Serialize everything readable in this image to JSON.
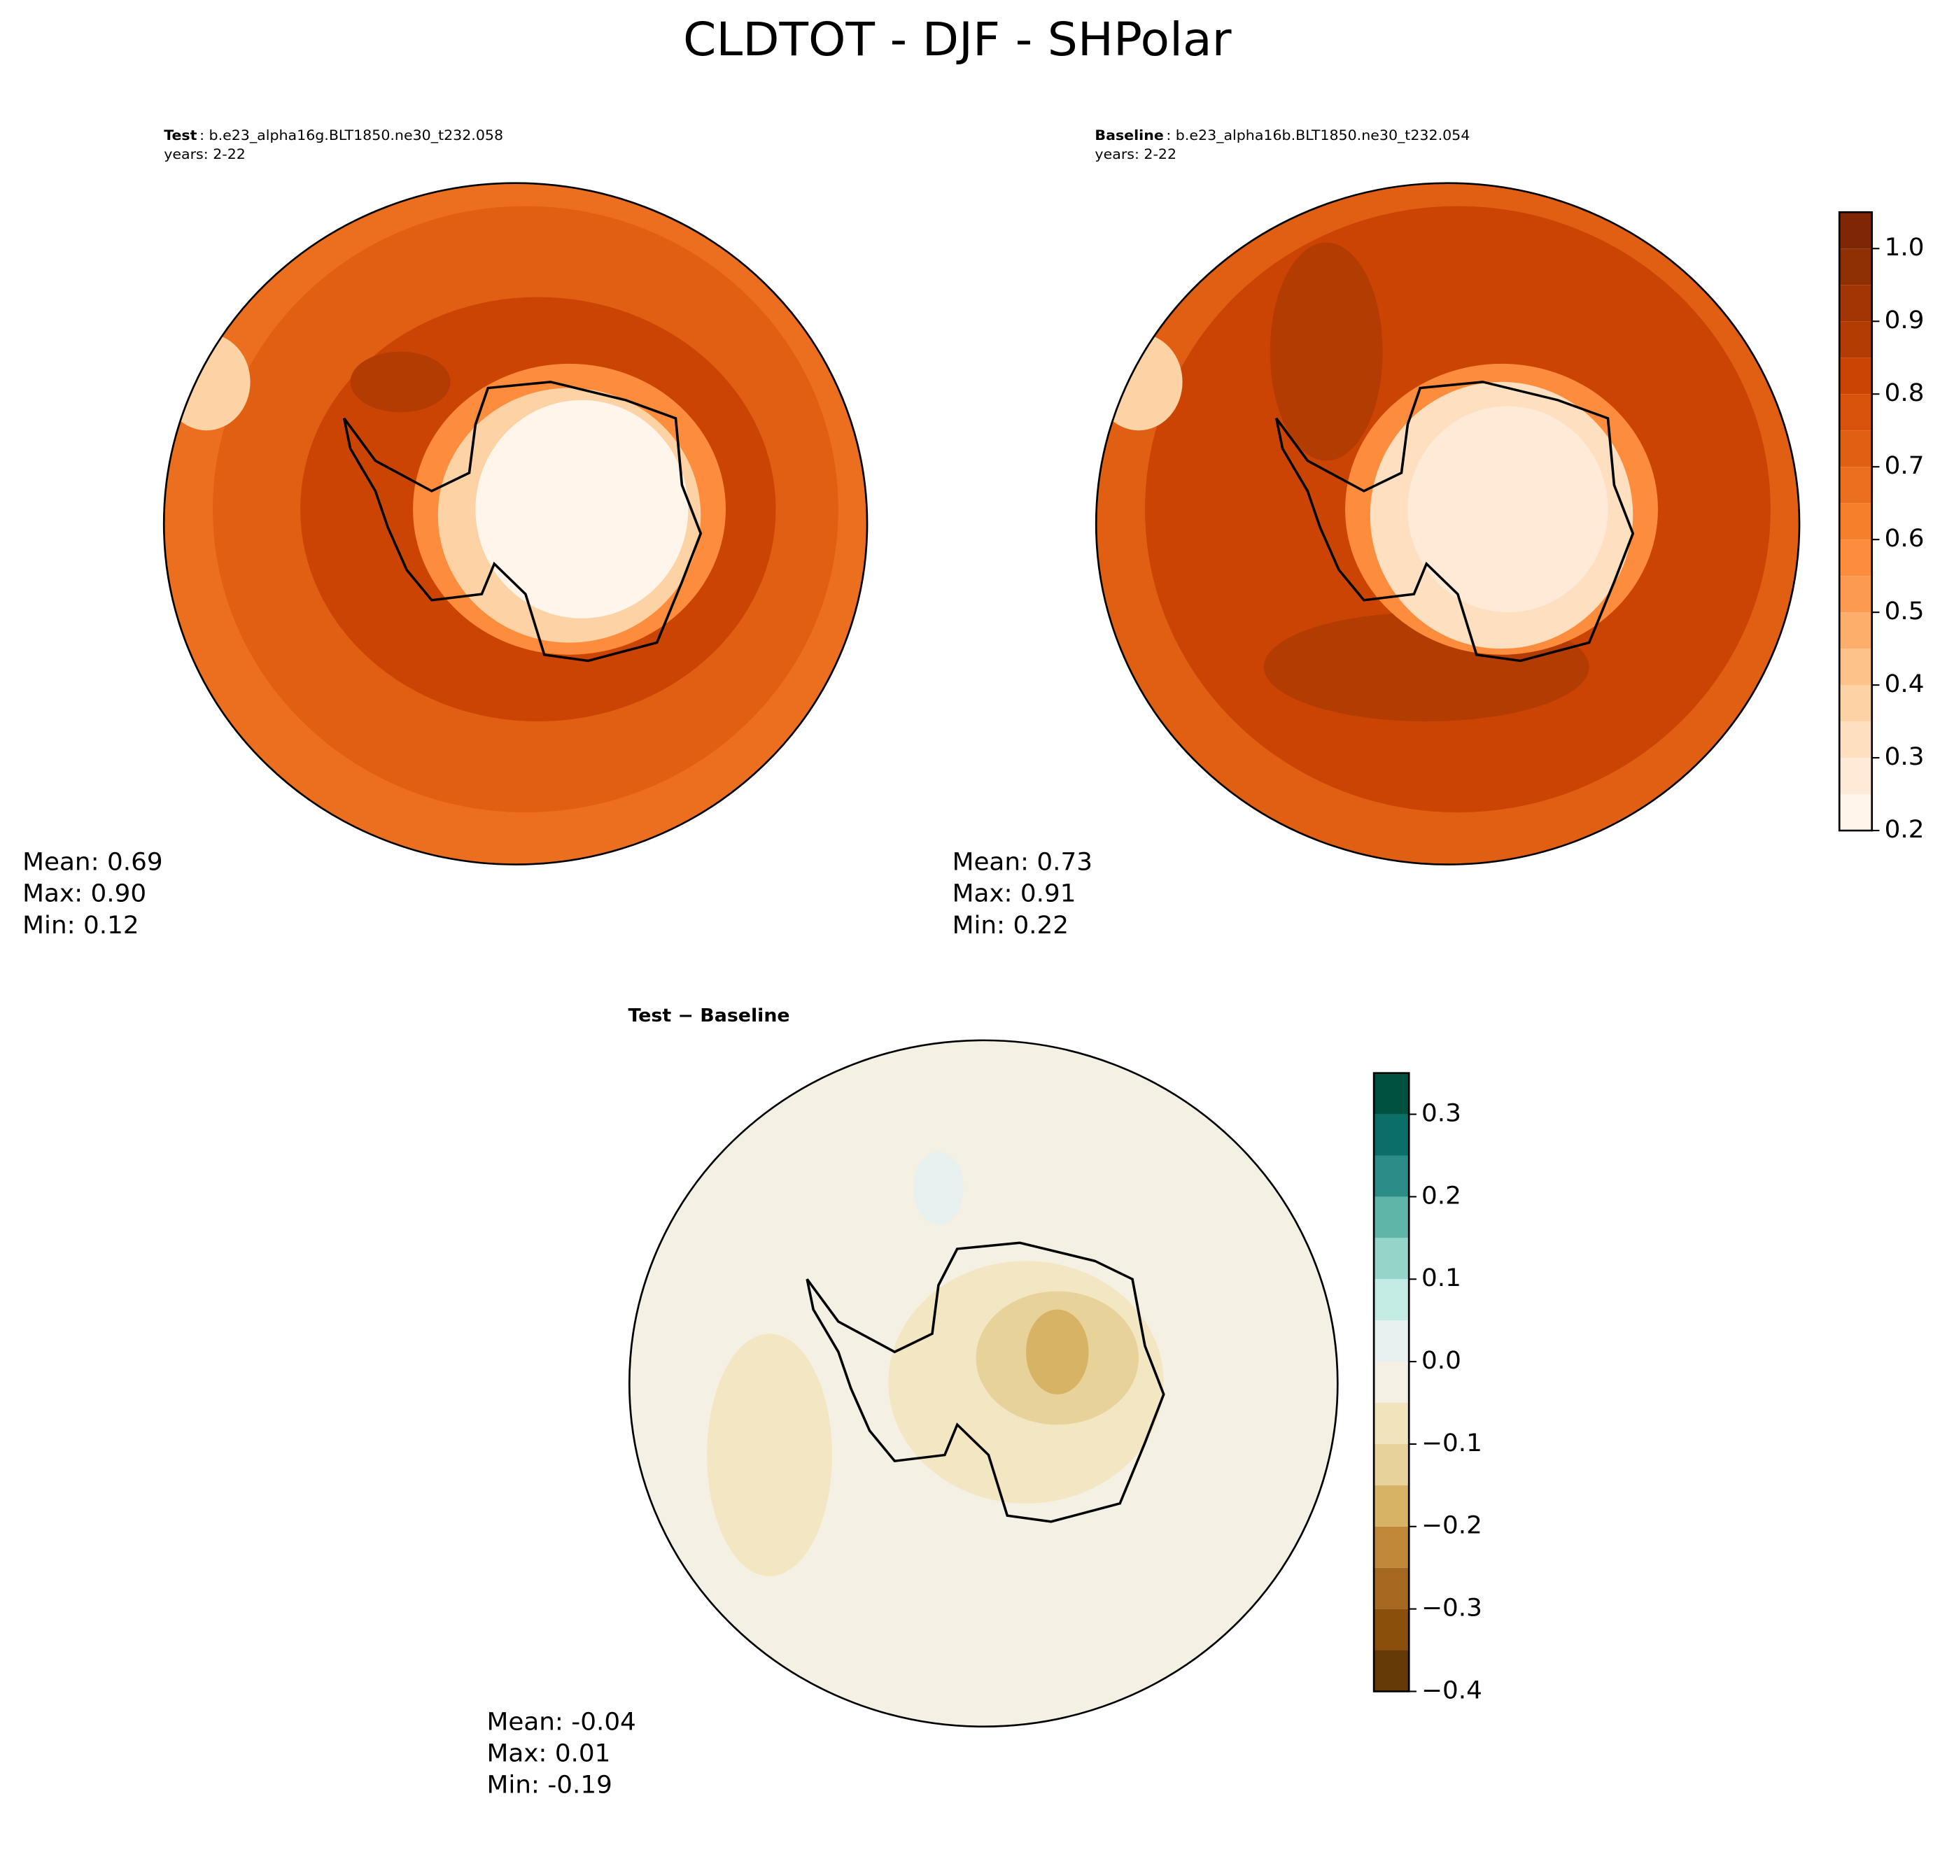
{
  "chart_data": [
    {
      "type": "polar-map",
      "suptitle": "CLDTOT - DJF - SHPolar",
      "title_bold": "Test",
      "title": ": b.e23_alpha16g.BLT1850.ne30_t232.058",
      "subtitle": "years: 2-22",
      "stats": [
        "Mean:  0.69",
        "Max:  0.90",
        "Min:  0.12"
      ]
    },
    {
      "type": "polar-map",
      "title_bold": "Baseline",
      "title": ": b.e23_alpha16b.BLT1850.ne30_t232.054",
      "subtitle": "years: 2-22",
      "stats": [
        "Mean:  0.73",
        "Max:  0.91",
        "Min:  0.22"
      ],
      "colorbar": {
        "levels": [
          0.2,
          0.25,
          0.3,
          0.35,
          0.4,
          0.45,
          0.5,
          0.55,
          0.6,
          0.65,
          0.7,
          0.75,
          0.8,
          0.85,
          0.9,
          0.95,
          1.0,
          1.05
        ],
        "colors": [
          "#fff5eb",
          "#feead6",
          "#fee0c1",
          "#fdd2a5",
          "#fdc18a",
          "#fdae6b",
          "#fd9a52",
          "#fd8d3c",
          "#f67f2c",
          "#ec6f1f",
          "#e15f12",
          "#d9520c",
          "#cb4403",
          "#b33c02",
          "#a13503",
          "#8e2f04",
          "#7f2704"
        ],
        "ylim": [
          0.2,
          1.05
        ],
        "yticks": [
          0.2,
          0.3,
          0.4,
          0.5,
          0.6,
          0.7,
          0.8,
          0.9,
          {
            "value": 1.0,
            "label": "1.0"
          }
        ]
      }
    },
    {
      "type": "polar-map",
      "title_bold": "Test − Baseline",
      "stats": [
        "Mean: -0.04",
        "Max:  0.01",
        "Min: -0.19"
      ],
      "colorbar": {
        "levels": [
          -0.4,
          -0.35,
          -0.3,
          -0.25,
          -0.2,
          -0.15,
          -0.1,
          -0.05,
          0.0,
          0.05,
          0.1,
          0.15,
          0.2,
          0.25,
          0.3,
          0.35
        ],
        "colors": [
          "#653a06",
          "#8a4f0a",
          "#a66820",
          "#c08838",
          "#d6b365",
          "#e7d299",
          "#f1e3bc",
          "#f4f0e3",
          "#e7f1ef",
          "#c4ebe3",
          "#95d5c9",
          "#5eb5a8",
          "#2c8d86",
          "#0a6f66",
          "#00513f"
        ],
        "ylim": [
          -0.4,
          0.35
        ],
        "yticks": [
          {
            "value": -0.4,
            "label": "−0.4"
          },
          {
            "value": -0.3,
            "label": "−0.3"
          },
          {
            "value": -0.2,
            "label": "−0.2"
          },
          {
            "value": -0.1,
            "label": "−0.1"
          },
          {
            "value": 0.0,
            "label": "0.0"
          },
          0.1,
          0.2,
          0.3
        ]
      }
    }
  ]
}
